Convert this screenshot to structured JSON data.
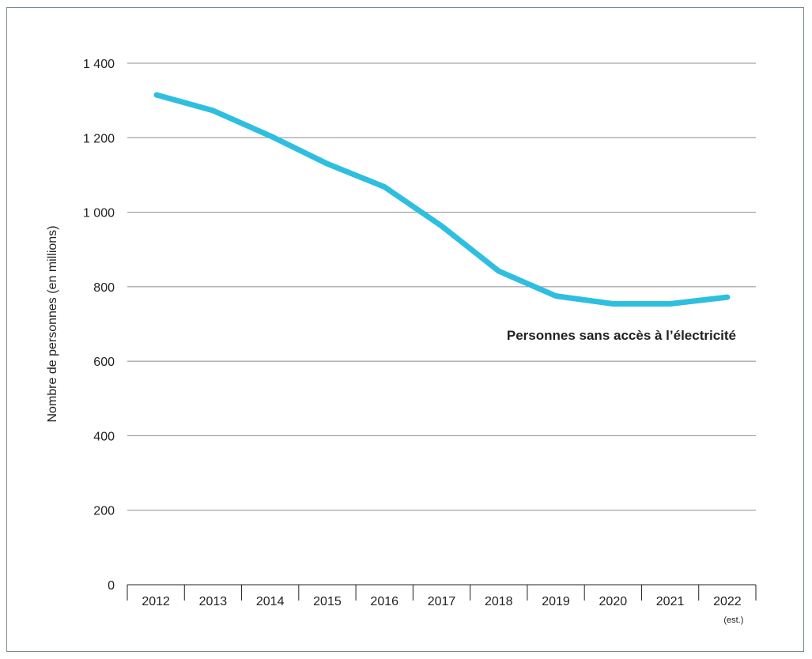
{
  "chart_data": {
    "type": "line",
    "ylabel": "Nombre de personnes (en millions)",
    "xlabel": "",
    "title": "",
    "categories": [
      "2012",
      "2013",
      "2014",
      "2015",
      "2016",
      "2017",
      "2018",
      "2019",
      "2020",
      "2021",
      "2022"
    ],
    "category_notes": {
      "2022": "(est.)"
    },
    "ylim": [
      0,
      1400
    ],
    "y_ticks": [
      0,
      200,
      400,
      600,
      800,
      1000,
      1200,
      1400
    ],
    "y_tick_labels": [
      "0",
      "200",
      "400",
      "600",
      "800",
      "1 000",
      "1 200",
      "1 400"
    ],
    "grid": true,
    "series": [
      {
        "name": "Personnes sans accès à l’électricité",
        "color": "#2ebfe0",
        "values": [
          1315,
          1273,
          1205,
          1130,
          1068,
          963,
          842,
          775,
          754,
          754,
          772
        ]
      }
    ]
  }
}
